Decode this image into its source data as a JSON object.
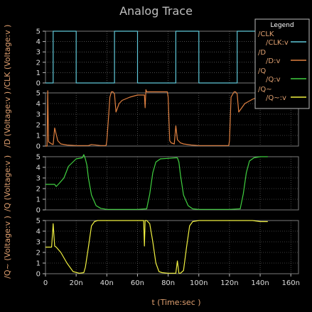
{
  "chart_data": {
    "type": "line",
    "title": "Analog Trace",
    "xlabel": "t (Time:sec )",
    "xlim": [
      0,
      165
    ],
    "x_ticks": [
      0,
      20,
      40,
      60,
      80,
      100,
      120,
      140,
      160
    ],
    "x_tick_labels": [
      "0",
      "20n",
      "40n",
      "60n",
      "80n",
      "100n",
      "120n",
      "140n",
      "160n"
    ],
    "grid": true,
    "legend": {
      "title": "Legend",
      "placement": "top-right",
      "entries": [
        {
          "label": "/CLK",
          "series": "/CLK:v",
          "color": "#5fc8d8"
        },
        {
          "label": "/D",
          "series": "/D:v",
          "color": "#e08040"
        },
        {
          "label": "/Q",
          "series": "/Q:v",
          "color": "#40d040"
        },
        {
          "label": "/Q~",
          "series": "/Q~:v",
          "color": "#f0f040"
        }
      ]
    },
    "panels": [
      {
        "name": "/CLK:v",
        "ylabel": "/CLK (Voltage:v )",
        "ylim": [
          0,
          5
        ],
        "y_ticks": [
          "0",
          "1",
          "2",
          "3",
          "4",
          "5"
        ],
        "color": "#5fc8d8",
        "x": [
          0,
          5,
          5,
          20,
          20,
          45,
          45,
          60,
          60,
          85,
          85,
          100,
          100,
          125,
          125,
          140,
          140,
          165
        ],
        "y": [
          0,
          0,
          5,
          5,
          0,
          0,
          5,
          5,
          0,
          0,
          5,
          5,
          0,
          0,
          5,
          5,
          0,
          0
        ]
      },
      {
        "name": "/D:v",
        "ylabel": "/D (Voltage:v )",
        "ylim": [
          0,
          5
        ],
        "y_ticks": [
          "0",
          "1",
          "2",
          "3",
          "4",
          "5"
        ],
        "color": "#e08040",
        "x": [
          0,
          1,
          1.5,
          2,
          3,
          4,
          5,
          6,
          8,
          10,
          14,
          20,
          28,
          30,
          36,
          39.5,
          40,
          41,
          42,
          43,
          44,
          45,
          46,
          47,
          48,
          50,
          55,
          60,
          64.5,
          65,
          65.5,
          66,
          70,
          79.5,
          80,
          80.5,
          81,
          82,
          84,
          85,
          86,
          88,
          90,
          95,
          100,
          110,
          119.5,
          120,
          120.5,
          121,
          123,
          124,
          125,
          126,
          128,
          130,
          135,
          140,
          145
        ],
        "y": [
          0,
          0,
          5.2,
          0.4,
          0.3,
          0.2,
          0.15,
          1.7,
          0.5,
          0.2,
          0.1,
          0.05,
          0.05,
          0.15,
          0.05,
          0.05,
          0.5,
          2.5,
          4.6,
          5.1,
          5.1,
          4.9,
          3.2,
          3.6,
          4.0,
          4.3,
          4.6,
          4.8,
          4.8,
          3.6,
          5.3,
          5.1,
          5.1,
          5.1,
          4.6,
          2.5,
          0.5,
          0.3,
          0.2,
          1.9,
          0.6,
          0.3,
          0.2,
          0.1,
          0.05,
          0.05,
          0.05,
          0.5,
          2.5,
          4.6,
          5.1,
          5.1,
          4.9,
          3.2,
          3.6,
          4.0,
          4.4,
          4.7,
          4.9
        ]
      },
      {
        "name": "/Q:v",
        "ylabel": "/Q (Voltage:v )",
        "ylim": [
          0,
          5
        ],
        "y_ticks": [
          "0",
          "1",
          "2",
          "3",
          "4",
          "5"
        ],
        "color": "#40d040",
        "x": [
          0,
          6,
          7,
          9,
          12,
          15,
          20,
          24,
          25,
          26,
          27,
          28,
          30,
          33,
          36,
          40,
          50,
          60,
          66,
          68,
          70,
          72,
          75,
          80,
          85,
          86,
          87,
          88,
          90,
          93,
          96,
          100,
          110,
          120,
          127,
          129,
          131,
          133,
          136,
          140,
          145
        ],
        "y": [
          2.4,
          2.4,
          2.2,
          2.5,
          3.0,
          4.1,
          4.8,
          4.9,
          5.2,
          4.8,
          4.2,
          3.0,
          1.4,
          0.4,
          0.15,
          0.05,
          0.05,
          0.05,
          0.1,
          1.5,
          3.5,
          4.5,
          4.8,
          4.85,
          4.9,
          4.9,
          4.5,
          3.3,
          1.4,
          0.4,
          0.1,
          0.05,
          0.05,
          0.05,
          0.1,
          1.5,
          3.5,
          4.6,
          4.9,
          5.0,
          5.0
        ]
      },
      {
        "name": "/Q~:v",
        "ylabel": "/Q~ (Voltage:v )",
        "ylim": [
          0,
          5
        ],
        "y_ticks": [
          "0",
          "1",
          "2",
          "3",
          "4",
          "5"
        ],
        "color": "#f0f040",
        "x": [
          0,
          4,
          5,
          6,
          7,
          10,
          14,
          18,
          22,
          25,
          26,
          28,
          30,
          32,
          34,
          36,
          40,
          50,
          60,
          64,
          64.5,
          65,
          66,
          68,
          70,
          72,
          74,
          76,
          80,
          85,
          86,
          87,
          88,
          90,
          92,
          94,
          96,
          100,
          110,
          120,
          125,
          127,
          129,
          132,
          135,
          140,
          145
        ],
        "y": [
          2.5,
          2.5,
          4.7,
          2.6,
          2.5,
          2.0,
          1.0,
          0.2,
          0.05,
          0.1,
          0.6,
          2.5,
          4.5,
          4.9,
          5.0,
          5.0,
          5.0,
          5.0,
          5.0,
          5.0,
          2.6,
          5.0,
          5.0,
          4.7,
          3.0,
          1.0,
          0.2,
          0.1,
          0.05,
          0.05,
          1.2,
          0.05,
          0.05,
          0.3,
          2.5,
          4.5,
          4.9,
          5.0,
          5.0,
          5.0,
          5.0,
          5.0,
          5.0,
          5.0,
          5.0,
          4.9,
          4.9
        ]
      }
    ]
  }
}
